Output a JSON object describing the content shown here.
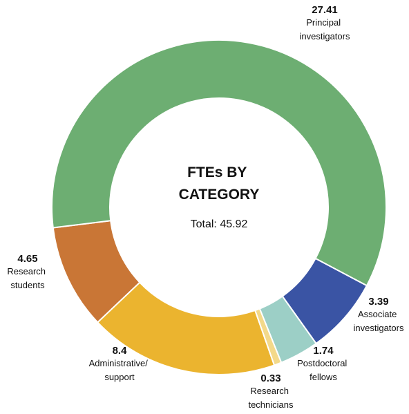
{
  "chart_data": {
    "type": "donut",
    "title": "FTEs BY CATEGORY",
    "subtitle": "Total: 45.92",
    "categories": [
      "Principal investigators",
      "Associate investigators",
      "Postdoctoral fellows",
      "Research technicians",
      "Administrative/ support",
      "Research students"
    ],
    "values": [
      27.41,
      3.39,
      1.74,
      0.33,
      8.4,
      4.65
    ],
    "colors": [
      "#6dae72",
      "#3a54a4",
      "#9ccfc6",
      "#f3d98a",
      "#ebb42f",
      "#c97636"
    ]
  }
}
